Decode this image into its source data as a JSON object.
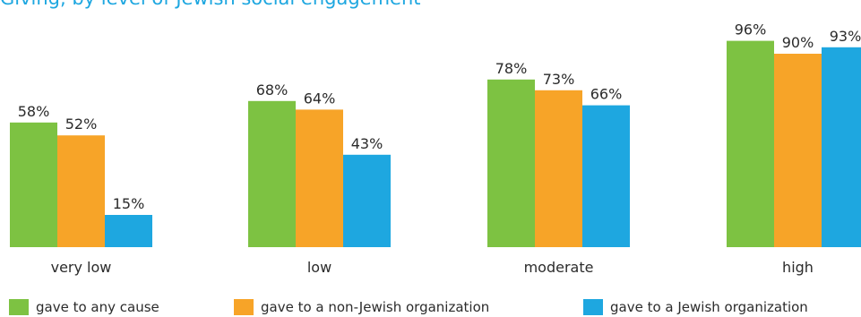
{
  "chart_data": {
    "type": "bar",
    "title": "Giving, by level of Jewish social engagement",
    "categories": [
      "very low",
      "low",
      "moderate",
      "high"
    ],
    "series": [
      {
        "name": "gave to any cause",
        "color": "#7dc242",
        "values": [
          58,
          68,
          78,
          96
        ]
      },
      {
        "name": "gave to a non-Jewish organization",
        "color": "#f7a428",
        "values": [
          52,
          64,
          73,
          90
        ]
      },
      {
        "name": "gave to a Jewish organization",
        "color": "#1ea7e0",
        "values": [
          15,
          43,
          66,
          93
        ]
      }
    ],
    "value_suffix": "%",
    "ylim": [
      0,
      100
    ],
    "grid": false,
    "legend_position": "bottom"
  }
}
